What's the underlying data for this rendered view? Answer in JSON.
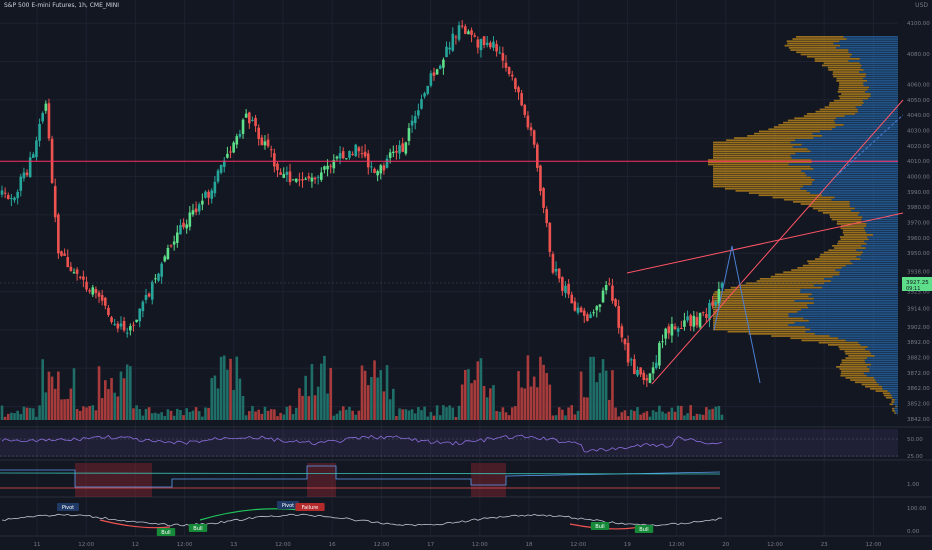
{
  "header": {
    "title": "S&P 500 E-mini Futures, 1h, CME_MINI",
    "currency": "USD"
  },
  "last_price": {
    "value": "3927.25",
    "countdown": "09:11"
  },
  "colors": {
    "background": "#131722",
    "up": "#26a69a",
    "up_bright": "#5ee08a",
    "down": "#ef5350",
    "vol_up": "#1f6e68",
    "vol_down": "#a83b3b",
    "hline": "#ff2e63",
    "vp_orange": "#c98f1b",
    "vp_blue": "#2a6fb5",
    "rsi": "#8e6fe0",
    "osc": "#c2c6d6",
    "trend": "#ff5566",
    "proj": "#4a7fd4"
  },
  "chart_data": {
    "type": "candlestick",
    "title": "S&P 500 E-mini Futures, 1h, CME_MINI",
    "ylabel": "USD",
    "ylim": [
      3838,
      4106
    ],
    "y_ticks": [
      "4100.00",
      "4080.00",
      "4060.00",
      "4050.00",
      "4040.00",
      "4030.00",
      "4020.00",
      "4010.00",
      "4000.00",
      "3990.00",
      "3980.00",
      "3970.00",
      "3960.00",
      "3950.00",
      "3938.00",
      "3925.00",
      "3914.00",
      "3902.00",
      "3892.00",
      "3882.00",
      "3872.00",
      "3862.00",
      "3852.00",
      "3842.00"
    ],
    "x_ticks": [
      "11",
      "12:00",
      "12",
      "12:00",
      "13",
      "12:00",
      "16",
      "12:00",
      "17",
      "12:00",
      "18",
      "12:00",
      "19",
      "12:00",
      "20",
      "12:00",
      "23",
      "12:00"
    ],
    "horizontal_level": 4010,
    "price_anchors": [
      [
        0,
        3990
      ],
      [
        3,
        3986
      ],
      [
        8,
        4004
      ],
      [
        14,
        4046
      ],
      [
        18,
        3952
      ],
      [
        24,
        3935
      ],
      [
        30,
        3922
      ],
      [
        36,
        3905
      ],
      [
        42,
        3900
      ],
      [
        48,
        3930
      ],
      [
        54,
        3955
      ],
      [
        60,
        3975
      ],
      [
        66,
        3990
      ],
      [
        72,
        4015
      ],
      [
        78,
        4040
      ],
      [
        84,
        4020
      ],
      [
        90,
        4000
      ],
      [
        96,
        3995
      ],
      [
        102,
        4005
      ],
      [
        108,
        4012
      ],
      [
        114,
        4018
      ],
      [
        118,
        4005
      ],
      [
        122,
        4008
      ],
      [
        128,
        4020
      ],
      [
        134,
        4052
      ],
      [
        140,
        4075
      ],
      [
        146,
        4098
      ],
      [
        152,
        4088
      ],
      [
        158,
        4084
      ],
      [
        164,
        4060
      ],
      [
        170,
        4020
      ],
      [
        176,
        3940
      ],
      [
        182,
        3918
      ],
      [
        188,
        3908
      ],
      [
        194,
        3930
      ],
      [
        200,
        3880
      ],
      [
        206,
        3865
      ],
      [
        212,
        3900
      ],
      [
        218,
        3905
      ],
      [
        224,
        3908
      ],
      [
        230,
        3927
      ]
    ],
    "rsi": {
      "levels": [
        50,
        25
      ]
    },
    "indicator2": {
      "levels": [
        "1.00"
      ]
    },
    "oscillator": {
      "levels": [
        "100.00",
        "0.00"
      ],
      "signals": [
        "Pivot",
        "Bull",
        "Bull",
        "Pivot",
        "Failure",
        "Bull",
        "Bull"
      ]
    },
    "volume_profile": {
      "poc": 4010
    }
  }
}
